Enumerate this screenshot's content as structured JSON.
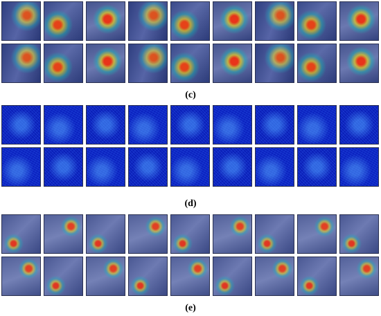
{
  "figure": {
    "panels": [
      {
        "id": "c",
        "caption": "(c)",
        "style": "cam",
        "rows": 2,
        "cols": 9
      },
      {
        "id": "d",
        "caption": "(d)",
        "style": "noise",
        "rows": 2,
        "cols": 9
      },
      {
        "id": "e",
        "caption": "(e)",
        "style": "sparse",
        "rows": 2,
        "cols": 9
      }
    ]
  }
}
